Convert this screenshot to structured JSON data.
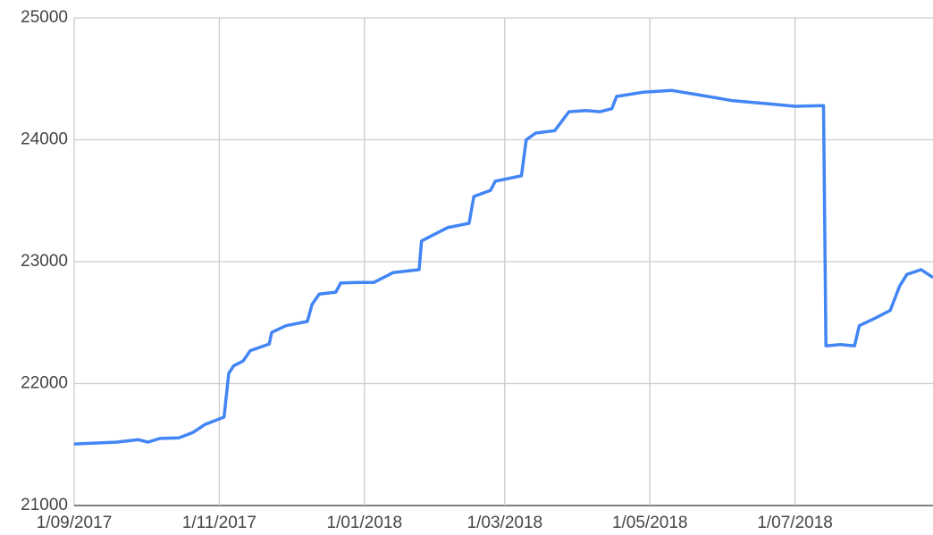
{
  "chart_data": {
    "type": "line",
    "x": [
      "2017-09-01",
      "2017-09-19",
      "2017-09-28",
      "2017-10-02",
      "2017-10-07",
      "2017-10-15",
      "2017-10-21",
      "2017-10-26",
      "2017-11-03",
      "2017-11-05",
      "2017-11-07",
      "2017-11-11",
      "2017-11-14",
      "2017-11-22",
      "2017-11-23",
      "2017-11-29",
      "2017-12-08",
      "2017-12-10",
      "2017-12-13",
      "2017-12-20",
      "2017-12-22",
      "2017-12-29",
      "2018-01-05",
      "2018-01-13",
      "2018-01-24",
      "2018-01-25",
      "2018-01-28",
      "2018-02-05",
      "2018-02-14",
      "2018-02-16",
      "2018-02-23",
      "2018-02-25",
      "2018-03-08",
      "2018-03-10",
      "2018-03-14",
      "2018-03-22",
      "2018-03-28",
      "2018-04-04",
      "2018-04-10",
      "2018-04-15",
      "2018-04-17",
      "2018-04-28",
      "2018-05-10",
      "2018-05-21",
      "2018-06-05",
      "2018-06-20",
      "2018-07-01",
      "2018-07-13",
      "2018-07-14",
      "2018-07-20",
      "2018-07-26",
      "2018-07-28",
      "2018-08-04",
      "2018-08-10",
      "2018-08-14",
      "2018-08-17",
      "2018-08-23",
      "2018-08-28"
    ],
    "series": [
      {
        "color": "#4285f4",
        "values": [
          21505,
          21520,
          21540,
          21520,
          21550,
          21555,
          21600,
          21665,
          21725,
          22085,
          22145,
          22185,
          22270,
          22325,
          22420,
          22475,
          22510,
          22650,
          22735,
          22750,
          22825,
          22830,
          22830,
          22910,
          22935,
          23170,
          23200,
          23280,
          23315,
          23535,
          23585,
          23660,
          23705,
          24000,
          24055,
          24075,
          24230,
          24240,
          24230,
          24255,
          24355,
          24390,
          24405,
          24370,
          24320,
          24295,
          24275,
          24280,
          22310,
          22320,
          22310,
          22475,
          22540,
          22600,
          22800,
          22895,
          22935,
          22870
        ]
      }
    ],
    "xlim": [
      "2017-09-01",
      "2018-08-28"
    ],
    "xticks": [
      {
        "value": "2017-09-01",
        "label": "1/09/2017"
      },
      {
        "value": "2017-11-01",
        "label": "1/11/2017"
      },
      {
        "value": "2018-01-01",
        "label": "1/01/2018"
      },
      {
        "value": "2018-03-01",
        "label": "1/03/2018"
      },
      {
        "value": "2018-05-01",
        "label": "1/05/2018"
      },
      {
        "value": "2018-07-01",
        "label": "1/07/2018"
      }
    ],
    "ylim": [
      21000,
      25000
    ],
    "yticks": [
      21000,
      22000,
      23000,
      24000,
      25000
    ],
    "grid": true
  }
}
